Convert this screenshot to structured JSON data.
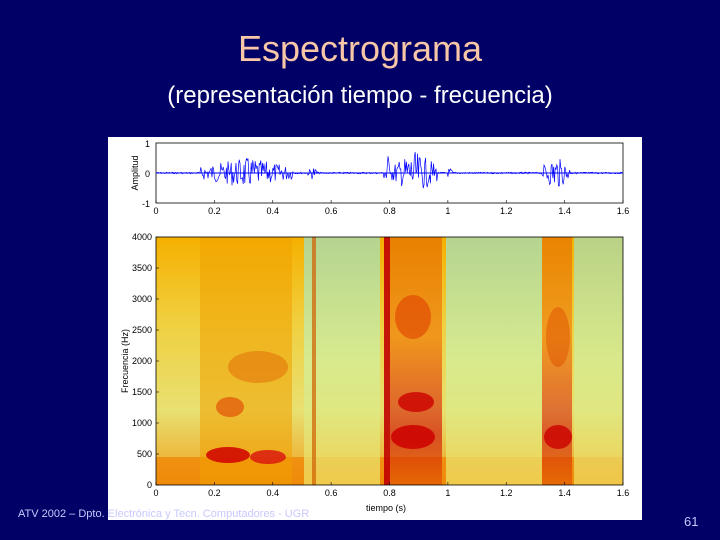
{
  "slide": {
    "title": "Espectrograma",
    "subtitle": "(representación tiempo - frecuencia)",
    "footer": "ATV 2002 – Dpto. Electrónica y Tecn. Computadores - UGR",
    "page_number": "61"
  },
  "waveform": {
    "ylabel": "Amplitud",
    "y_ticks": [
      "1",
      "0",
      "-1"
    ],
    "x_ticks": [
      "0",
      "0.2",
      "0.4",
      "0.6",
      "0.8",
      "1",
      "1.2",
      "1.4",
      "1.6"
    ],
    "color": "#0000ff"
  },
  "spectrogram": {
    "xlabel": "tiempo (s)",
    "ylabel": "Frecuencia (Hz)",
    "y_ticks": [
      "4000",
      "3500",
      "3000",
      "2500",
      "2000",
      "1500",
      "1000",
      "500",
      "0"
    ],
    "x_ticks": [
      "0",
      "0.2",
      "0.4",
      "0.6",
      "0.8",
      "1",
      "1.2",
      "1.4",
      "1.6"
    ]
  }
}
